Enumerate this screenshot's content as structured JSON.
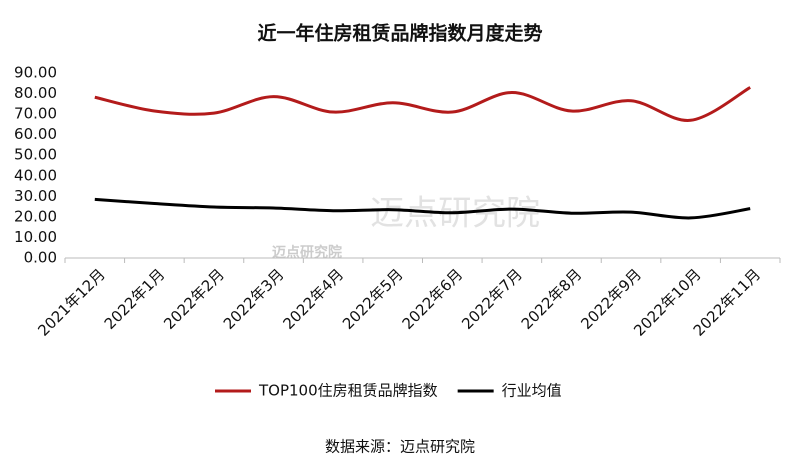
{
  "chart_data": {
    "type": "line",
    "title": "近一年住房租赁品牌指数月度走势",
    "categories": [
      "2021年12月",
      "2022年1月",
      "2022年2月",
      "2022年3月",
      "2022年4月",
      "2022年5月",
      "2022年6月",
      "2022年7月",
      "2022年8月",
      "2022年9月",
      "2022年10月",
      "2022年11月"
    ],
    "series": [
      {
        "name": "TOP100住房租赁品牌指数",
        "color": "#b31b1b",
        "values": [
          78.2,
          71.5,
          70.5,
          78.5,
          71.0,
          75.5,
          71.0,
          80.5,
          71.5,
          76.5,
          67.0,
          83.0
        ]
      },
      {
        "name": "行业均值",
        "color": "#000000",
        "values": [
          28.5,
          26.5,
          24.8,
          24.3,
          23.0,
          23.5,
          22.0,
          23.8,
          21.8,
          22.3,
          19.5,
          24.0
        ]
      }
    ],
    "ylim": [
      0,
      90
    ],
    "yticks": [
      {
        "value": 0,
        "label": "0.00"
      },
      {
        "value": 10,
        "label": "10.00"
      },
      {
        "value": 20,
        "label": "20.00"
      },
      {
        "value": 30,
        "label": "30.00"
      },
      {
        "value": 40,
        "label": "40.00"
      },
      {
        "value": 50,
        "label": "50.00"
      },
      {
        "value": 60,
        "label": "60.00"
      },
      {
        "value": 70,
        "label": "70.00"
      },
      {
        "value": 80,
        "label": "80.00"
      },
      {
        "value": 90,
        "label": "90.00"
      }
    ],
    "grid": false,
    "legend": "bottom",
    "source": "数据来源：迈点研究院",
    "watermark": "迈点研究院"
  }
}
